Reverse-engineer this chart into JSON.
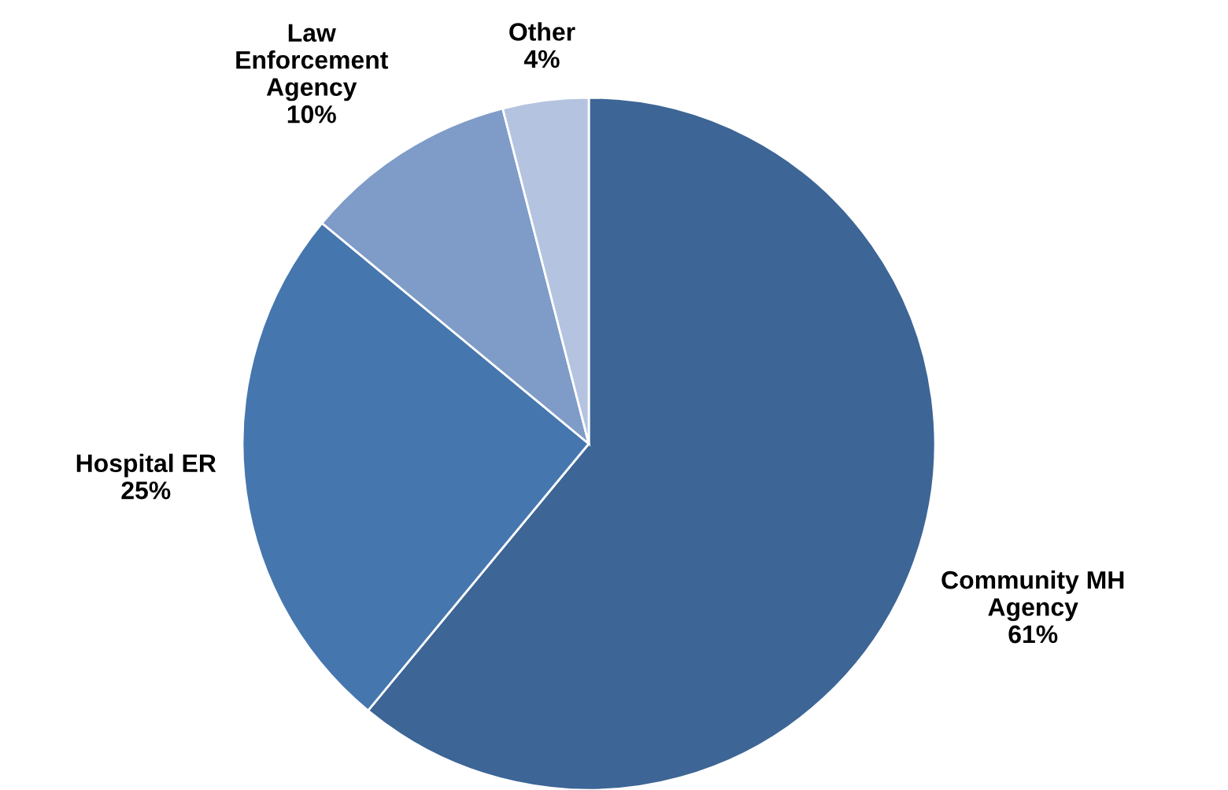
{
  "chart_data": {
    "type": "pie",
    "categories": [
      "Community MH\nAgency",
      "Hospital ER",
      "Law\nEnforcement\nAgency",
      "Other"
    ],
    "values": [
      61,
      25,
      10,
      4
    ],
    "value_labels": [
      "61%",
      "25%",
      "10%",
      "4%"
    ],
    "colors": [
      "#3d6596",
      "#4676ae",
      "#7f9cc8",
      "#b4c3df"
    ],
    "legend": false
  }
}
